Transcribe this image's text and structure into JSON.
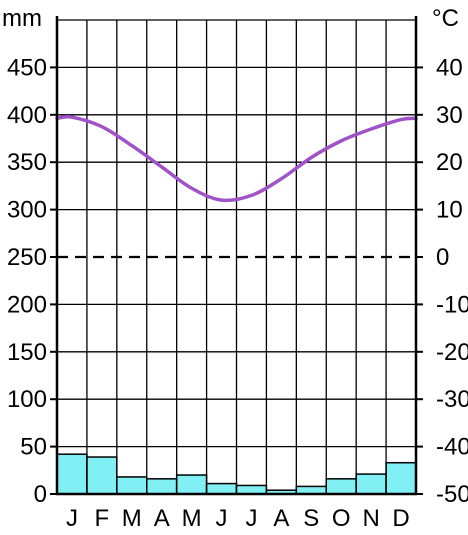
{
  "chart_data": {
    "type": "climate_diagram",
    "categories": [
      "J",
      "F",
      "M",
      "A",
      "M",
      "J",
      "J",
      "A",
      "S",
      "O",
      "N",
      "D"
    ],
    "left_axis": {
      "unit": "mm",
      "range": [
        0,
        500
      ],
      "ticks": [
        "0",
        "50",
        "100",
        "150",
        "200",
        "250",
        "300",
        "350",
        "400",
        "450"
      ]
    },
    "right_axis": {
      "unit": "°C",
      "range": [
        -50,
        50
      ],
      "ticks": [
        "-50",
        "-40",
        "-30",
        "-20",
        "-10",
        "0",
        "10",
        "20",
        "30",
        "40"
      ]
    },
    "series": [
      {
        "kind": "bar",
        "axis": "left",
        "values": [
          42,
          39,
          18,
          16,
          20,
          11,
          9,
          4,
          8,
          16,
          21,
          33
        ]
      },
      {
        "kind": "line",
        "axis": "right",
        "values": [
          29.5,
          27.5,
          23.5,
          19,
          14.5,
          12,
          13,
          16.5,
          21,
          24.5,
          27,
          29
        ]
      }
    ],
    "reference_line": {
      "axis": "right",
      "value": 0,
      "style": "dashed"
    },
    "grid": true,
    "colors": {
      "bars": "#80f0f4",
      "line": "#a052c8",
      "grid": "#000000",
      "axis": "#000000"
    }
  }
}
